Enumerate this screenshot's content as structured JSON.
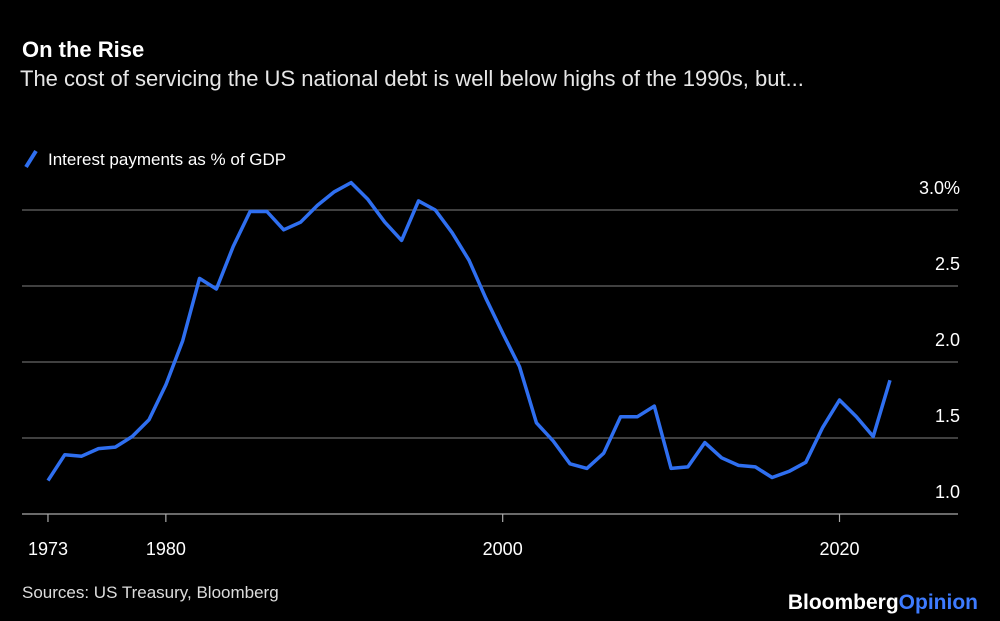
{
  "chart_data": {
    "type": "line",
    "title": "On the Rise",
    "subtitle": "The cost of servicing the US national debt is well below highs of the 1990s, but...",
    "source": "Sources: US Treasury, Bloomberg",
    "logo": {
      "brand": "Bloomberg",
      "suffix": "Opinion"
    },
    "x": [
      1973,
      1974,
      1975,
      1976,
      1977,
      1978,
      1979,
      1980,
      1981,
      1982,
      1983,
      1984,
      1985,
      1986,
      1987,
      1988,
      1989,
      1990,
      1991,
      1992,
      1993,
      1994,
      1995,
      1996,
      1997,
      1998,
      1999,
      2000,
      2001,
      2002,
      2003,
      2004,
      2005,
      2006,
      2007,
      2008,
      2009,
      2010,
      2011,
      2012,
      2013,
      2014,
      2015,
      2016,
      2017,
      2018,
      2019,
      2020,
      2021,
      2022,
      2023
    ],
    "series": [
      {
        "name": "Interest payments as % of GDP",
        "color": "#2f6ff0",
        "values": [
          1.22,
          1.39,
          1.38,
          1.43,
          1.44,
          1.51,
          1.62,
          1.85,
          2.14,
          2.55,
          2.48,
          2.76,
          2.99,
          2.99,
          2.87,
          2.92,
          3.03,
          3.12,
          3.18,
          3.07,
          2.92,
          2.8,
          3.06,
          3.0,
          2.85,
          2.67,
          2.42,
          2.19,
          1.97,
          1.6,
          1.48,
          1.33,
          1.3,
          1.4,
          1.64,
          1.64,
          1.71,
          1.3,
          1.31,
          1.47,
          1.37,
          1.32,
          1.31,
          1.24,
          1.28,
          1.34,
          1.57,
          1.75,
          1.64,
          1.51,
          1.88
        ]
      }
    ],
    "xlim": [
      1971.5,
      2027
    ],
    "xticks": [
      1973,
      1980,
      2000,
      2020
    ],
    "ylim": [
      1.0,
      3.2
    ],
    "yticks": [
      {
        "value": 1,
        "label": "1.0"
      },
      1.5,
      {
        "value": 2,
        "label": "2.0"
      },
      2.5,
      {
        "value": 3,
        "label": "3.0%"
      }
    ],
    "grid": true
  }
}
